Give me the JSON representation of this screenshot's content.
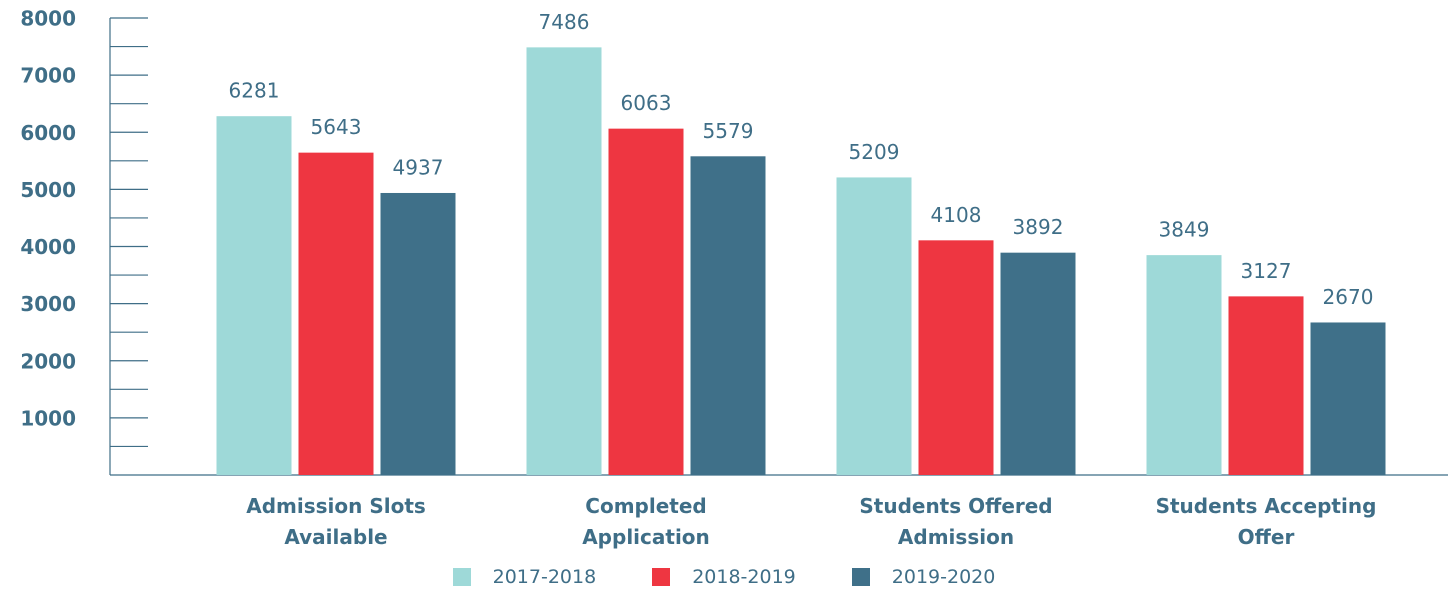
{
  "chart_data": {
    "type": "bar",
    "categories": [
      "Admission Slots\nAvailable",
      "Completed\nApplication",
      "Students Offered\nAdmission",
      "Students Accepting\nOffer"
    ],
    "series": [
      {
        "name": "2017-2018",
        "color": "#9ed9d8",
        "values": [
          6281,
          7486,
          5209,
          3849
        ]
      },
      {
        "name": "2018-2019",
        "color": "#ee3641",
        "values": [
          5643,
          6063,
          4108,
          3127
        ]
      },
      {
        "name": "2019-2020",
        "color": "#3f7089",
        "values": [
          4937,
          5579,
          3892,
          2670
        ]
      }
    ],
    "ylim": [
      0,
      8000
    ],
    "yticks": [
      1000,
      2000,
      3000,
      4000,
      5000,
      6000,
      7000,
      8000
    ]
  }
}
